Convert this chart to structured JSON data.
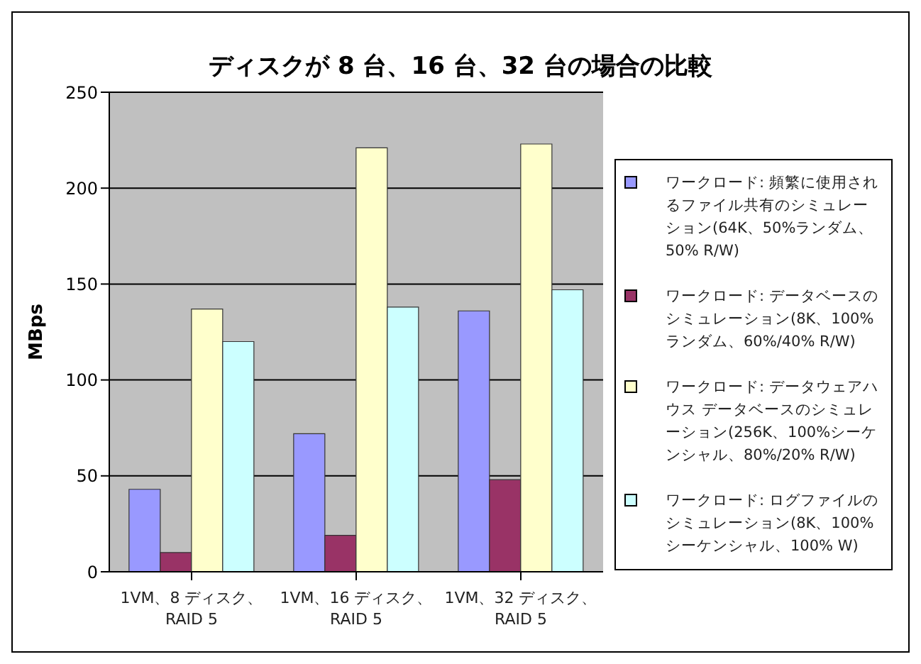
{
  "chart_data": {
    "type": "bar",
    "title": "ディスクが 8 台、16 台、32 台の場合の比較",
    "ylabel": "MBps",
    "categories": [
      "1VM、8 ディスク、\nRAID 5",
      "1VM、16 ディスク、\nRAID 5",
      "1VM、32 ディスク、\nRAID 5"
    ],
    "series": [
      {
        "name": "ワークロード: 頻繁に使用されるファイル共有のシミュレーション(64K、50%ランダム、50% R/W)",
        "color": "#9999ff",
        "values": [
          43,
          72,
          136
        ]
      },
      {
        "name": "ワークロード: データベースのシミュレーション(8K、100%ランダム、60%/40% R/W)",
        "color": "#993366",
        "values": [
          10,
          19,
          48
        ]
      },
      {
        "name": "ワークロード: データウェアハウス データベースのシミュレーション(256K、100%シーケンシャル、80%/20% R/W)",
        "color": "#ffffcc",
        "values": [
          137,
          221,
          223
        ]
      },
      {
        "name": "ワークロード: ログファイルのシミュレーション(8K、100%シーケンシャル、100% W)",
        "color": "#ccffff",
        "values": [
          120,
          138,
          147
        ]
      }
    ],
    "ylim": [
      0,
      250
    ],
    "yticks": [
      0,
      50,
      100,
      150,
      200,
      250
    ],
    "grid": "y",
    "legend": "right"
  }
}
